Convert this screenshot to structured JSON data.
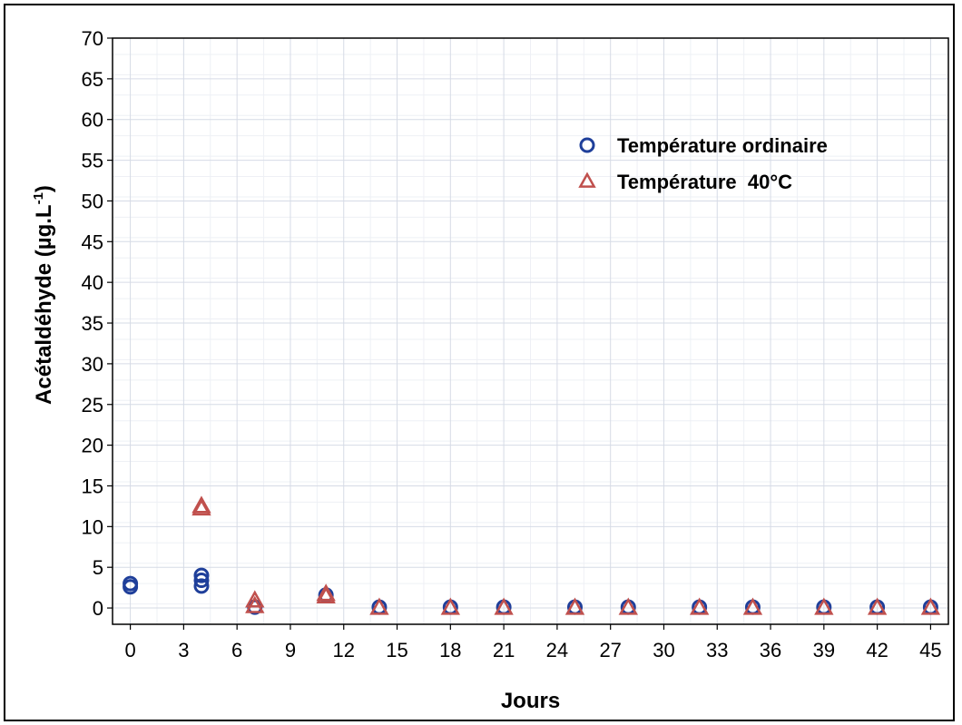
{
  "chart_data": {
    "type": "scatter",
    "xlabel": "Jours",
    "ylabel": "Acétaldéhyde (µg.L",
    "ylabel_superscript": "-1",
    "ylabel_close": ")",
    "xlim": [
      -1,
      46
    ],
    "ylim": [
      -2,
      70
    ],
    "x_ticks": [
      0,
      3,
      6,
      9,
      12,
      15,
      18,
      21,
      24,
      27,
      30,
      33,
      36,
      39,
      42,
      45
    ],
    "y_ticks": [
      0,
      5,
      10,
      15,
      20,
      25,
      30,
      35,
      40,
      45,
      50,
      55,
      60,
      65,
      70
    ],
    "grid": true,
    "legend_position": "top-right",
    "series": [
      {
        "name": "Température ordinaire",
        "marker": "circle",
        "color": "#1f3f9a",
        "points": [
          [
            0,
            3.0
          ],
          [
            0,
            2.6
          ],
          [
            4,
            4.0
          ],
          [
            4,
            3.4
          ],
          [
            4,
            2.7
          ],
          [
            7,
            0.1
          ],
          [
            11,
            1.6
          ],
          [
            14,
            0.1
          ],
          [
            18,
            0.1
          ],
          [
            21,
            0.1
          ],
          [
            25,
            0.1
          ],
          [
            28,
            0.1
          ],
          [
            32,
            0.1
          ],
          [
            35,
            0.1
          ],
          [
            39,
            0.1
          ],
          [
            42,
            0.1
          ],
          [
            45,
            0.1
          ]
        ]
      },
      {
        "name": "Température  40°C",
        "marker": "triangle",
        "color": "#c0504d",
        "points": [
          [
            4,
            12.5
          ],
          [
            4,
            12.2
          ],
          [
            7,
            0.9
          ],
          [
            7,
            0.2
          ],
          [
            11,
            1.7
          ],
          [
            11,
            1.4
          ],
          [
            14,
            0.0
          ],
          [
            18,
            0.0
          ],
          [
            21,
            0.0
          ],
          [
            25,
            0.0
          ],
          [
            28,
            0.0
          ],
          [
            32,
            0.0
          ],
          [
            35,
            0.0
          ],
          [
            39,
            0.0
          ],
          [
            42,
            0.0
          ],
          [
            45,
            0.0
          ]
        ]
      }
    ]
  }
}
